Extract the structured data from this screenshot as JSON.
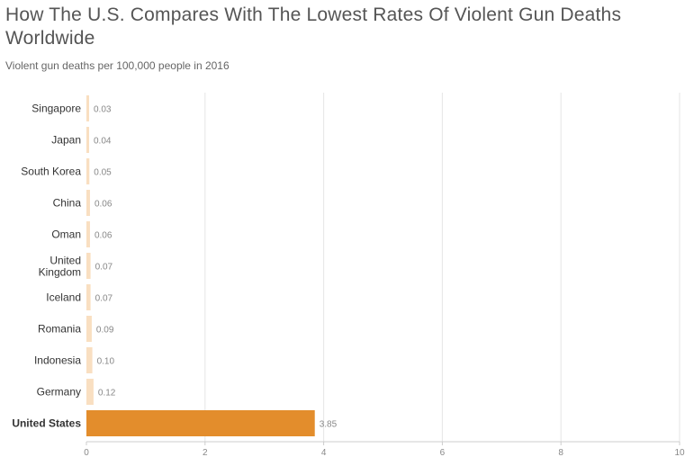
{
  "header": {
    "title": "How The U.S. Compares With The Lowest Rates Of Violent Gun Deaths Worldwide",
    "subtitle": "Violent gun deaths per 100,000 people in 2016"
  },
  "colors": {
    "bar": "#f9dfc1",
    "highlight_bar": "#e38d2c",
    "grid": "#e5e5e5"
  },
  "chart_data": {
    "type": "bar",
    "orientation": "horizontal",
    "title": "How The U.S. Compares With The Lowest Rates Of Violent Gun Deaths Worldwide",
    "subtitle": "Violent gun deaths per 100,000 people in 2016",
    "categories": [
      "Singapore",
      "Japan",
      "South Korea",
      "China",
      "Oman",
      "United Kingdom",
      "Iceland",
      "Romania",
      "Indonesia",
      "Germany",
      "United States"
    ],
    "values": [
      0.03,
      0.04,
      0.05,
      0.06,
      0.06,
      0.07,
      0.07,
      0.09,
      0.1,
      0.12,
      3.85
    ],
    "value_labels": [
      "0.03",
      "0.04",
      "0.05",
      "0.06",
      "0.06",
      "0.07",
      "0.07",
      "0.09",
      "0.10",
      "0.12",
      "3.85"
    ],
    "highlight": "United States",
    "xlim": [
      0,
      10
    ],
    "xticks": [
      0,
      2,
      4,
      6,
      8,
      10
    ],
    "grid": true,
    "legend": "none"
  }
}
